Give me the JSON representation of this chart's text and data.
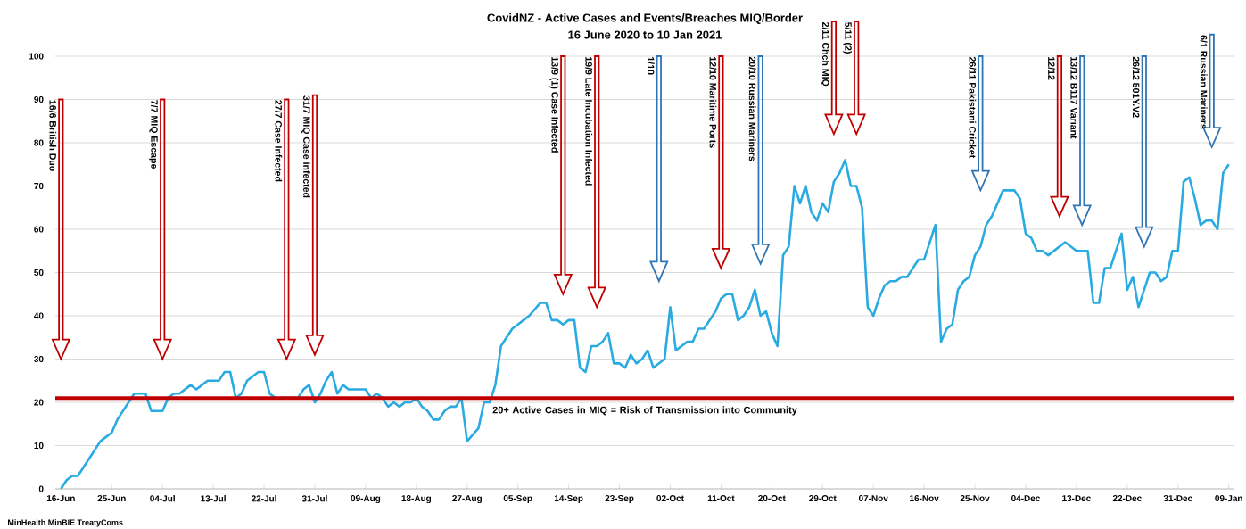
{
  "chart_data": {
    "type": "line",
    "title": "CovidNZ - Active Cases and Events/Breaches MIQ/Border",
    "subtitle": "16 June 2020 to 10 Jan 2021",
    "x": [
      "2020-06-16",
      "2020-06-17",
      "2020-06-18",
      "2020-06-19",
      "2020-06-23",
      "2020-06-25",
      "2020-06-26",
      "2020-06-29",
      "2020-07-01",
      "2020-07-02",
      "2020-07-04",
      "2020-07-05",
      "2020-07-06",
      "2020-07-07",
      "2020-07-09",
      "2020-07-10",
      "2020-07-11",
      "2020-07-12",
      "2020-07-14",
      "2020-07-15",
      "2020-07-16",
      "2020-07-17",
      "2020-07-18",
      "2020-07-19",
      "2020-07-20",
      "2020-07-21",
      "2020-07-22",
      "2020-07-23",
      "2020-07-24",
      "2020-07-28",
      "2020-07-29",
      "2020-07-30",
      "2020-07-31",
      "2020-08-01",
      "2020-08-02",
      "2020-08-03",
      "2020-08-04",
      "2020-08-05",
      "2020-08-06",
      "2020-08-09",
      "2020-08-10",
      "2020-08-11",
      "2020-08-12",
      "2020-08-13",
      "2020-08-14",
      "2020-08-15",
      "2020-08-16",
      "2020-08-17",
      "2020-08-18",
      "2020-08-19",
      "2020-08-20",
      "2020-08-21",
      "2020-08-22",
      "2020-08-23",
      "2020-08-24",
      "2020-08-25",
      "2020-08-26",
      "2020-08-27",
      "2020-08-29",
      "2020-08-30",
      "2020-08-31",
      "2020-09-01",
      "2020-09-02",
      "2020-09-03",
      "2020-09-04",
      "2020-09-05",
      "2020-09-06",
      "2020-09-07",
      "2020-09-09",
      "2020-09-10",
      "2020-09-11",
      "2020-09-12",
      "2020-09-13",
      "2020-09-14",
      "2020-09-15",
      "2020-09-16",
      "2020-09-17",
      "2020-09-18",
      "2020-09-19",
      "2020-09-20",
      "2020-09-21",
      "2020-09-22",
      "2020-09-23",
      "2020-09-24",
      "2020-09-25",
      "2020-09-26",
      "2020-09-27",
      "2020-09-28",
      "2020-09-29",
      "2020-10-01",
      "2020-10-02",
      "2020-10-03",
      "2020-10-05",
      "2020-10-06",
      "2020-10-07",
      "2020-10-08",
      "2020-10-10",
      "2020-10-11",
      "2020-10-12",
      "2020-10-13",
      "2020-10-14",
      "2020-10-15",
      "2020-10-16",
      "2020-10-17",
      "2020-10-18",
      "2020-10-19",
      "2020-10-20",
      "2020-10-21",
      "2020-10-22",
      "2020-10-23",
      "2020-10-24",
      "2020-10-25",
      "2020-10-26",
      "2020-10-27",
      "2020-10-28",
      "2020-10-29",
      "2020-10-30",
      "2020-10-31",
      "2020-11-01",
      "2020-11-02",
      "2020-11-03",
      "2020-11-04",
      "2020-11-05",
      "2020-11-06",
      "2020-11-07",
      "2020-11-08",
      "2020-11-09",
      "2020-11-10",
      "2020-11-11",
      "2020-11-12",
      "2020-11-13",
      "2020-11-15",
      "2020-11-16",
      "2020-11-18",
      "2020-11-19",
      "2020-11-20",
      "2020-11-21",
      "2020-11-22",
      "2020-11-23",
      "2020-11-24",
      "2020-11-25",
      "2020-11-26",
      "2020-11-27",
      "2020-11-28",
      "2020-11-29",
      "2020-11-30",
      "2020-12-02",
      "2020-12-03",
      "2020-12-04",
      "2020-12-05",
      "2020-12-06",
      "2020-12-07",
      "2020-12-08",
      "2020-12-11",
      "2020-12-13",
      "2020-12-15",
      "2020-12-16",
      "2020-12-17",
      "2020-12-18",
      "2020-12-19",
      "2020-12-21",
      "2020-12-22",
      "2020-12-23",
      "2020-12-24",
      "2020-12-25",
      "2020-12-26",
      "2020-12-27",
      "2020-12-28",
      "2020-12-29",
      "2020-12-30",
      "2020-12-31",
      "2021-01-01",
      "2021-01-02",
      "2021-01-03",
      "2021-01-04",
      "2021-01-05",
      "2021-01-06",
      "2021-01-07",
      "2021-01-08",
      "2021-01-09"
    ],
    "series": [
      {
        "color": "#29abe2",
        "values": [
          0,
          2,
          3,
          3,
          11,
          13,
          16,
          22,
          22,
          18,
          18,
          21,
          22,
          22,
          24,
          23,
          24,
          25,
          25,
          27,
          27,
          21,
          22,
          25,
          26,
          27,
          27,
          22,
          21,
          21,
          23,
          24,
          20,
          22,
          25,
          27,
          22,
          24,
          23,
          23,
          21,
          22,
          21,
          19,
          20,
          19,
          20,
          20,
          21,
          19,
          18,
          16,
          16,
          18,
          19,
          19,
          21,
          11,
          14,
          20,
          20,
          24,
          33,
          35,
          37,
          38,
          39,
          40,
          43,
          43,
          39,
          39,
          38,
          39,
          39,
          28,
          27,
          33,
          33,
          34,
          36,
          29,
          29,
          28,
          31,
          29,
          30,
          32,
          28,
          30,
          42,
          32,
          34,
          34,
          37,
          37,
          41,
          44,
          45,
          45,
          39,
          40,
          42,
          46,
          40,
          41,
          36,
          33,
          54,
          56,
          70,
          66,
          70,
          64,
          62,
          66,
          64,
          71,
          73,
          76,
          70,
          70,
          65,
          42,
          40,
          44,
          47,
          48,
          48,
          49,
          49,
          53,
          53,
          61,
          34,
          37,
          38,
          46,
          48,
          49,
          54,
          56,
          61,
          63,
          66,
          69,
          69,
          67,
          59,
          58,
          55,
          55,
          54,
          57,
          55,
          55,
          43,
          43,
          51,
          51,
          59,
          46,
          49,
          42,
          46,
          50,
          50,
          48,
          49,
          55,
          55,
          71,
          72,
          67,
          61,
          62,
          62,
          60,
          73,
          75
        ]
      }
    ],
    "xlim": [
      "2020-06-15",
      "2021-01-10"
    ],
    "xticks": [
      {
        "value": "2020-06-16",
        "label": "16-Jun"
      },
      {
        "value": "2020-06-25",
        "label": "25-Jun"
      },
      {
        "value": "2020-07-04",
        "label": "04-Jul"
      },
      {
        "value": "2020-07-13",
        "label": "13-Jul"
      },
      {
        "value": "2020-07-22",
        "label": "22-Jul"
      },
      {
        "value": "2020-07-31",
        "label": "31-Jul"
      },
      {
        "value": "2020-08-09",
        "label": "09-Aug"
      },
      {
        "value": "2020-08-18",
        "label": "18-Aug"
      },
      {
        "value": "2020-08-27",
        "label": "27-Aug"
      },
      {
        "value": "2020-09-05",
        "label": "05-Sep"
      },
      {
        "value": "2020-09-14",
        "label": "14-Sep"
      },
      {
        "value": "2020-09-23",
        "label": "23-Sep"
      },
      {
        "value": "2020-10-02",
        "label": "02-Oct"
      },
      {
        "value": "2020-10-11",
        "label": "11-Oct"
      },
      {
        "value": "2020-10-20",
        "label": "20-Oct"
      },
      {
        "value": "2020-10-29",
        "label": "29-Oct"
      },
      {
        "value": "2020-11-07",
        "label": "07-Nov"
      },
      {
        "value": "2020-11-16",
        "label": "16-Nov"
      },
      {
        "value": "2020-11-25",
        "label": "25-Nov"
      },
      {
        "value": "2020-12-04",
        "label": "04-Dec"
      },
      {
        "value": "2020-12-13",
        "label": "13-Dec"
      },
      {
        "value": "2020-12-22",
        "label": "22-Dec"
      },
      {
        "value": "2020-12-31",
        "label": "31-Dec"
      },
      {
        "value": "2021-01-09",
        "label": "09-Jan"
      }
    ],
    "ylim": [
      0,
      100
    ],
    "yticks": [
      0,
      10,
      20,
      30,
      40,
      50,
      60,
      70,
      80,
      90,
      100
    ],
    "grid": "y",
    "ref_lines": [
      {
        "axis": "y",
        "value": 21,
        "label": "20+ Active Cases in MIQ = Risk of Transmission into Community",
        "color": "#c00000"
      },
      {
        "axis": "x",
        "value": "2020-06-16",
        "label": "16/6 British Duo",
        "color": "#c00000"
      },
      {
        "axis": "x",
        "value": "2020-07-04",
        "label": "7/7 MIQ Escape",
        "color": "#c00000"
      },
      {
        "axis": "x",
        "value": "2020-07-26",
        "label": "27/7 Case Infected",
        "color": "#c00000"
      },
      {
        "axis": "x",
        "value": "2020-07-31",
        "label": "31/7 MIQ Case Infected",
        "color": "#c00000"
      },
      {
        "axis": "x",
        "value": "2020-09-13",
        "label": "13/9 (1) Case Infected",
        "color": "#c00000"
      },
      {
        "axis": "x",
        "value": "2020-09-19",
        "label": "19/9 Late Incubation  Infected",
        "color": "#c00000"
      },
      {
        "axis": "x",
        "value": "2020-09-30",
        "label": "1/10",
        "color": "#2e75b6"
      },
      {
        "axis": "x",
        "value": "2020-10-11",
        "label": "12/10 Maritime Ports",
        "color": "#c00000"
      },
      {
        "axis": "x",
        "value": "2020-10-18",
        "label": "20/10 Russian Mariners",
        "color": "#2e75b6"
      },
      {
        "axis": "x",
        "value": "2020-10-31",
        "label": "2/11 Chch MIQ",
        "color": "#c00000"
      },
      {
        "axis": "x",
        "value": "2020-11-04",
        "label": "5/11 (2)",
        "color": "#c00000"
      },
      {
        "axis": "x",
        "value": "2020-11-26",
        "label": "26/11 Pakistani Cricket",
        "color": "#2e75b6"
      },
      {
        "axis": "x",
        "value": "2020-12-10",
        "label": "12/12",
        "color": "#c00000"
      },
      {
        "axis": "x",
        "value": "2020-12-14",
        "label": "13/12 B117 Variant",
        "color": "#2e75b6"
      },
      {
        "axis": "x",
        "value": "2020-12-25",
        "label": "26/12 501Y.V2",
        "color": "#2e75b6"
      },
      {
        "axis": "x",
        "value": "2021-01-06",
        "label": "6/1 Russian Mariners",
        "color": "#2e75b6"
      }
    ],
    "annotations": [
      "MinHealth MinBIE TreatyComs"
    ]
  }
}
